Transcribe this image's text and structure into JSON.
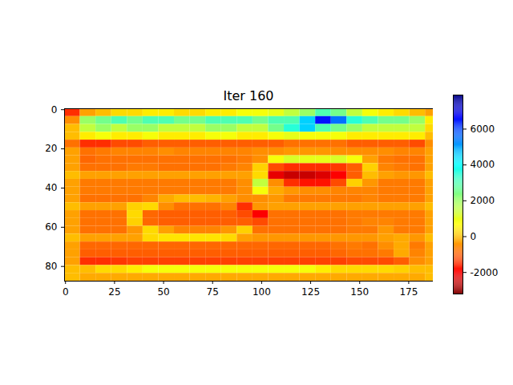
{
  "chart_data": {
    "type": "heatmap",
    "title": "Iter 160",
    "x_edges": [
      -0.5,
      7.5,
      15.5,
      23.5,
      31.5,
      39.5,
      47.5,
      55.5,
      63.5,
      71.5,
      79.5,
      87.5,
      95.5,
      103.5,
      111.5,
      119.5,
      127.5,
      135.5,
      143.5,
      151.5,
      159.5,
      167.5,
      175.5,
      183.5,
      187.5
    ],
    "y_edges": [
      -0.5,
      3.5,
      7.5,
      11.5,
      15.5,
      19.5,
      23.5,
      27.5,
      31.5,
      35.5,
      39.5,
      43.5,
      47.5,
      51.5,
      55.5,
      59.5,
      63.5,
      67.5,
      71.5,
      75.5,
      79.5,
      83.5,
      87.5
    ],
    "values": [
      [
        -1500,
        -300,
        0,
        300,
        300,
        500,
        500,
        300,
        300,
        500,
        500,
        800,
        800,
        1000,
        1500,
        2000,
        3000,
        2500,
        1500,
        800,
        500,
        300,
        0,
        -300
      ],
      [
        -500,
        2000,
        2500,
        3000,
        2500,
        3000,
        3000,
        2500,
        2500,
        3000,
        3000,
        3000,
        2500,
        3000,
        3000,
        4500,
        6500,
        5500,
        3500,
        3000,
        2500,
        2500,
        2000,
        500
      ],
      [
        0,
        1500,
        2000,
        1500,
        2000,
        2000,
        1500,
        1500,
        1500,
        2000,
        2000,
        1500,
        1500,
        2500,
        3500,
        4500,
        3000,
        2500,
        2000,
        1500,
        1500,
        1500,
        1500,
        300
      ],
      [
        0,
        500,
        800,
        500,
        500,
        800,
        500,
        500,
        500,
        800,
        800,
        500,
        500,
        800,
        1000,
        800,
        800,
        800,
        500,
        500,
        500,
        500,
        500,
        0
      ],
      [
        -800,
        -1500,
        -1500,
        -1200,
        -1200,
        -1000,
        -1000,
        -1000,
        -1000,
        -1000,
        -1000,
        -1000,
        -1000,
        -1000,
        -800,
        -800,
        -800,
        -800,
        -1000,
        -1000,
        -1000,
        -1000,
        -1200,
        -500
      ],
      [
        -300,
        -800,
        -700,
        -600,
        -600,
        -600,
        -500,
        -600,
        -600,
        -600,
        -600,
        -600,
        -500,
        -500,
        -400,
        -400,
        -400,
        -500,
        -500,
        -500,
        -500,
        -600,
        -600,
        -300
      ],
      [
        -300,
        -900,
        -800,
        -800,
        -800,
        -800,
        -800,
        -800,
        -800,
        -800,
        -800,
        -700,
        -500,
        800,
        1200,
        1000,
        1000,
        1200,
        800,
        -300,
        -700,
        -800,
        -800,
        -300
      ],
      [
        -300,
        -800,
        -800,
        -800,
        -700,
        -700,
        -800,
        -800,
        -800,
        -800,
        -700,
        -600,
        200,
        -1200,
        -1500,
        -1500,
        -1500,
        -1400,
        -1000,
        200,
        -600,
        -700,
        -800,
        -300
      ],
      [
        0,
        -300,
        -300,
        -300,
        -300,
        -300,
        -300,
        -300,
        -300,
        -300,
        -300,
        -300,
        300,
        -2200,
        -2500,
        -2500,
        -2300,
        -2000,
        -1000,
        0,
        -300,
        -400,
        -400,
        0
      ],
      [
        -300,
        -700,
        -700,
        -700,
        -700,
        -700,
        -700,
        -700,
        -700,
        -700,
        -700,
        -500,
        1500,
        -500,
        -1500,
        -1800,
        -1800,
        -1200,
        200,
        -400,
        -700,
        -700,
        -700,
        -300
      ],
      [
        -300,
        -700,
        -700,
        -700,
        -700,
        -700,
        -700,
        -700,
        -700,
        -700,
        -700,
        -500,
        800,
        -200,
        -400,
        -500,
        -500,
        -600,
        -600,
        -600,
        -700,
        -700,
        -700,
        -300
      ],
      [
        -300,
        -800,
        -800,
        -800,
        -800,
        -600,
        -200,
        0,
        0,
        -100,
        -300,
        -500,
        -500,
        -400,
        -700,
        -700,
        -700,
        -700,
        -700,
        -600,
        -700,
        -700,
        -700,
        -300
      ],
      [
        0,
        -300,
        -300,
        -300,
        200,
        300,
        -500,
        -800,
        -800,
        -800,
        -600,
        -1500,
        -400,
        -300,
        -300,
        -300,
        -300,
        -300,
        -300,
        -300,
        -300,
        -300,
        -300,
        0
      ],
      [
        -300,
        -800,
        -800,
        -800,
        300,
        -900,
        -1000,
        -1000,
        -1000,
        -1000,
        -1000,
        -1200,
        -2000,
        -800,
        -800,
        -800,
        -800,
        -800,
        -700,
        -700,
        -700,
        -700,
        -700,
        -300
      ],
      [
        -300,
        -800,
        -800,
        -800,
        200,
        -900,
        -1000,
        -1000,
        -1000,
        -1000,
        -1000,
        -1000,
        -1200,
        -800,
        -800,
        -800,
        -800,
        -800,
        -700,
        -600,
        -600,
        -700,
        -700,
        -300
      ],
      [
        -300,
        -800,
        -800,
        -800,
        -400,
        300,
        -300,
        -600,
        -600,
        -600,
        -400,
        200,
        -800,
        -800,
        -800,
        -800,
        -800,
        -800,
        -700,
        -700,
        -400,
        -700,
        -700,
        -300
      ],
      [
        0,
        -300,
        -300,
        -300,
        -300,
        300,
        400,
        400,
        400,
        400,
        300,
        -300,
        -400,
        -400,
        -400,
        -400,
        -400,
        -400,
        -400,
        -400,
        -300,
        -200,
        -400,
        0
      ],
      [
        -300,
        -900,
        -900,
        -900,
        -900,
        -900,
        -900,
        -900,
        -900,
        -900,
        -900,
        -900,
        -900,
        -900,
        -900,
        -900,
        -900,
        -800,
        -700,
        -800,
        -500,
        -200,
        -700,
        -300
      ],
      [
        -300,
        -1000,
        -1000,
        -1000,
        -1000,
        -1000,
        -1000,
        -1000,
        -1000,
        -1000,
        -1000,
        -1000,
        -1000,
        -1000,
        -1000,
        -1000,
        -1000,
        -900,
        -800,
        -800,
        -700,
        -200,
        -600,
        -300
      ],
      [
        -300,
        -1500,
        -1500,
        -1400,
        -1300,
        -1300,
        -1300,
        -1300,
        -1300,
        -1300,
        -1300,
        -1300,
        -1300,
        -1300,
        -1300,
        -1300,
        -1300,
        -1300,
        -1200,
        -1200,
        -1200,
        -1000,
        -500,
        -300
      ],
      [
        0,
        0,
        300,
        300,
        500,
        800,
        800,
        800,
        800,
        800,
        800,
        800,
        800,
        800,
        800,
        800,
        500,
        300,
        300,
        300,
        300,
        200,
        0,
        0
      ],
      [
        0,
        -200,
        -200,
        -200,
        -200,
        -200,
        -200,
        -200,
        -200,
        -200,
        -200,
        -200,
        -200,
        -200,
        -200,
        -200,
        -200,
        -200,
        -200,
        -200,
        -200,
        -200,
        -200,
        0
      ]
    ],
    "xlim": [
      -0.5,
      187.5
    ],
    "ylim": [
      87.5,
      -0.5
    ],
    "xticks": [
      0,
      25,
      50,
      75,
      100,
      125,
      150,
      175
    ],
    "yticks": [
      0,
      20,
      40,
      60,
      80
    ],
    "colorbar": {
      "range": [
        -3200,
        7900
      ],
      "ticks": [
        -2000,
        0,
        2000,
        4000,
        6000
      ]
    }
  }
}
